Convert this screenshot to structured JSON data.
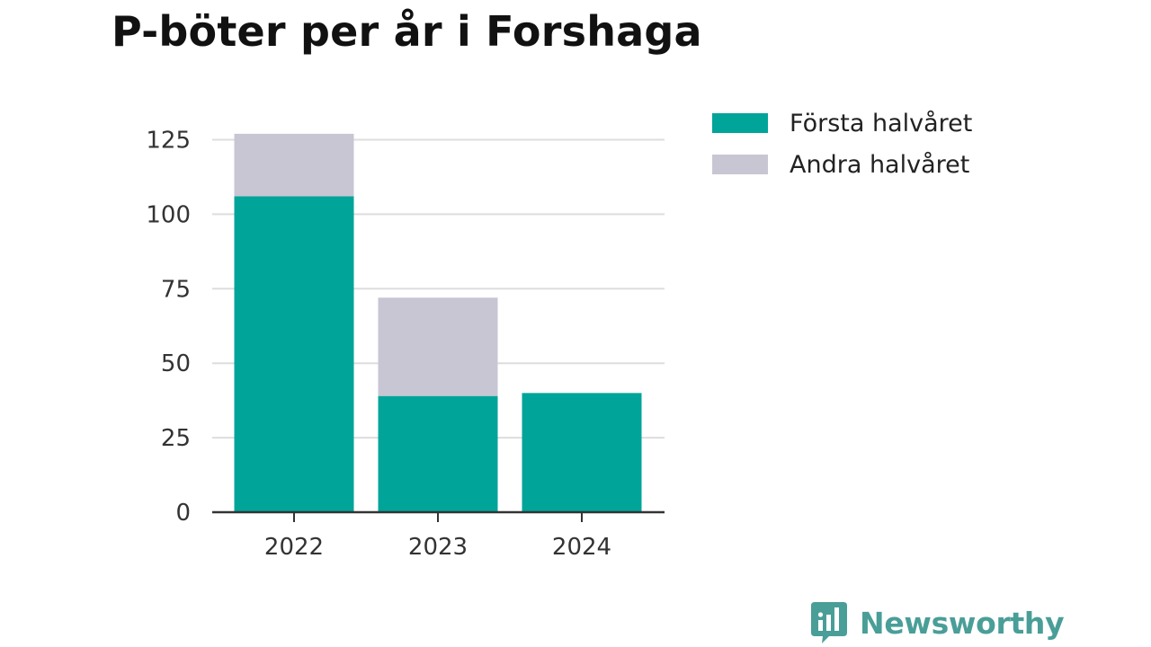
{
  "colors": {
    "first_half": "#00a499",
    "second_half": "#c8c6d3",
    "gridline": "#dddddd",
    "axis": "#333333",
    "brand": "#4a9e98"
  },
  "chart_data": {
    "type": "bar",
    "stacked": true,
    "title": "P-böter per år i Forshaga",
    "categories": [
      "2022",
      "2023",
      "2024"
    ],
    "series": [
      {
        "name": "Första halvåret",
        "values": [
          106,
          39,
          40
        ]
      },
      {
        "name": "Andra halvåret",
        "values": [
          21,
          33,
          0
        ]
      }
    ],
    "ylim": [
      0,
      125
    ],
    "yticks": [
      0,
      25,
      50,
      75,
      100,
      125
    ],
    "grid": true,
    "legend_position": "top-right"
  },
  "brand": {
    "name": "Newsworthy",
    "icon": "bar-chart-bubble-icon"
  }
}
